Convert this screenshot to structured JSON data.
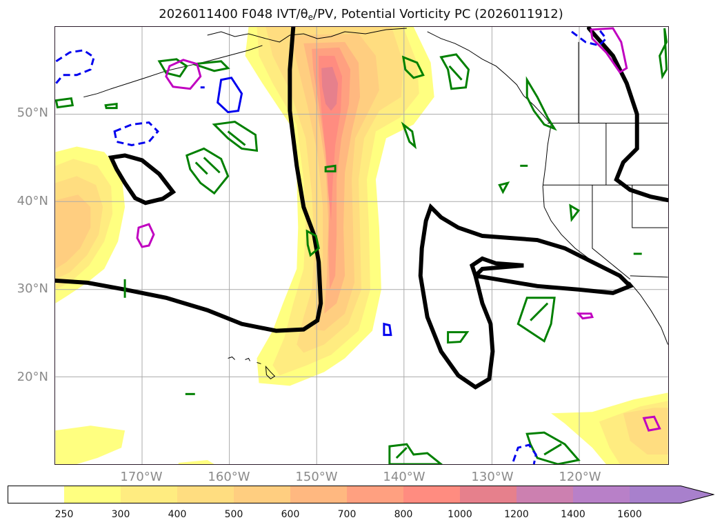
{
  "title": {
    "prefix": "2026011400 F048 IVT/",
    "theta": "θ",
    "theta_sub": "e",
    "suffix": "/PV, Potential Vorticity PC (2026011912)"
  },
  "map": {
    "lat_labels": [
      "50°N",
      "40°N",
      "30°N",
      "20°N"
    ],
    "lon_labels": [
      "170°W",
      "160°W",
      "150°W",
      "140°W",
      "130°W",
      "120°W"
    ],
    "colors": {
      "pv_positive": "#008000",
      "pv_negative": "#0000ee",
      "pv_other": "#c000c0",
      "streamline": "#000000",
      "coastline": "#000000",
      "grid": "#aaaaaa"
    }
  },
  "colorbar": {
    "ticks": [
      "250",
      "300",
      "400",
      "500",
      "600",
      "700",
      "800",
      "1000",
      "1200",
      "1400",
      "1600"
    ],
    "colors": [
      "#ffffff",
      "#ffff80",
      "#ffec80",
      "#ffdd80",
      "#ffce80",
      "#ffb880",
      "#ffa080",
      "#ff8c80",
      "#e6808c",
      "#cc80b0",
      "#b880c8",
      "#a880cc"
    ]
  }
}
